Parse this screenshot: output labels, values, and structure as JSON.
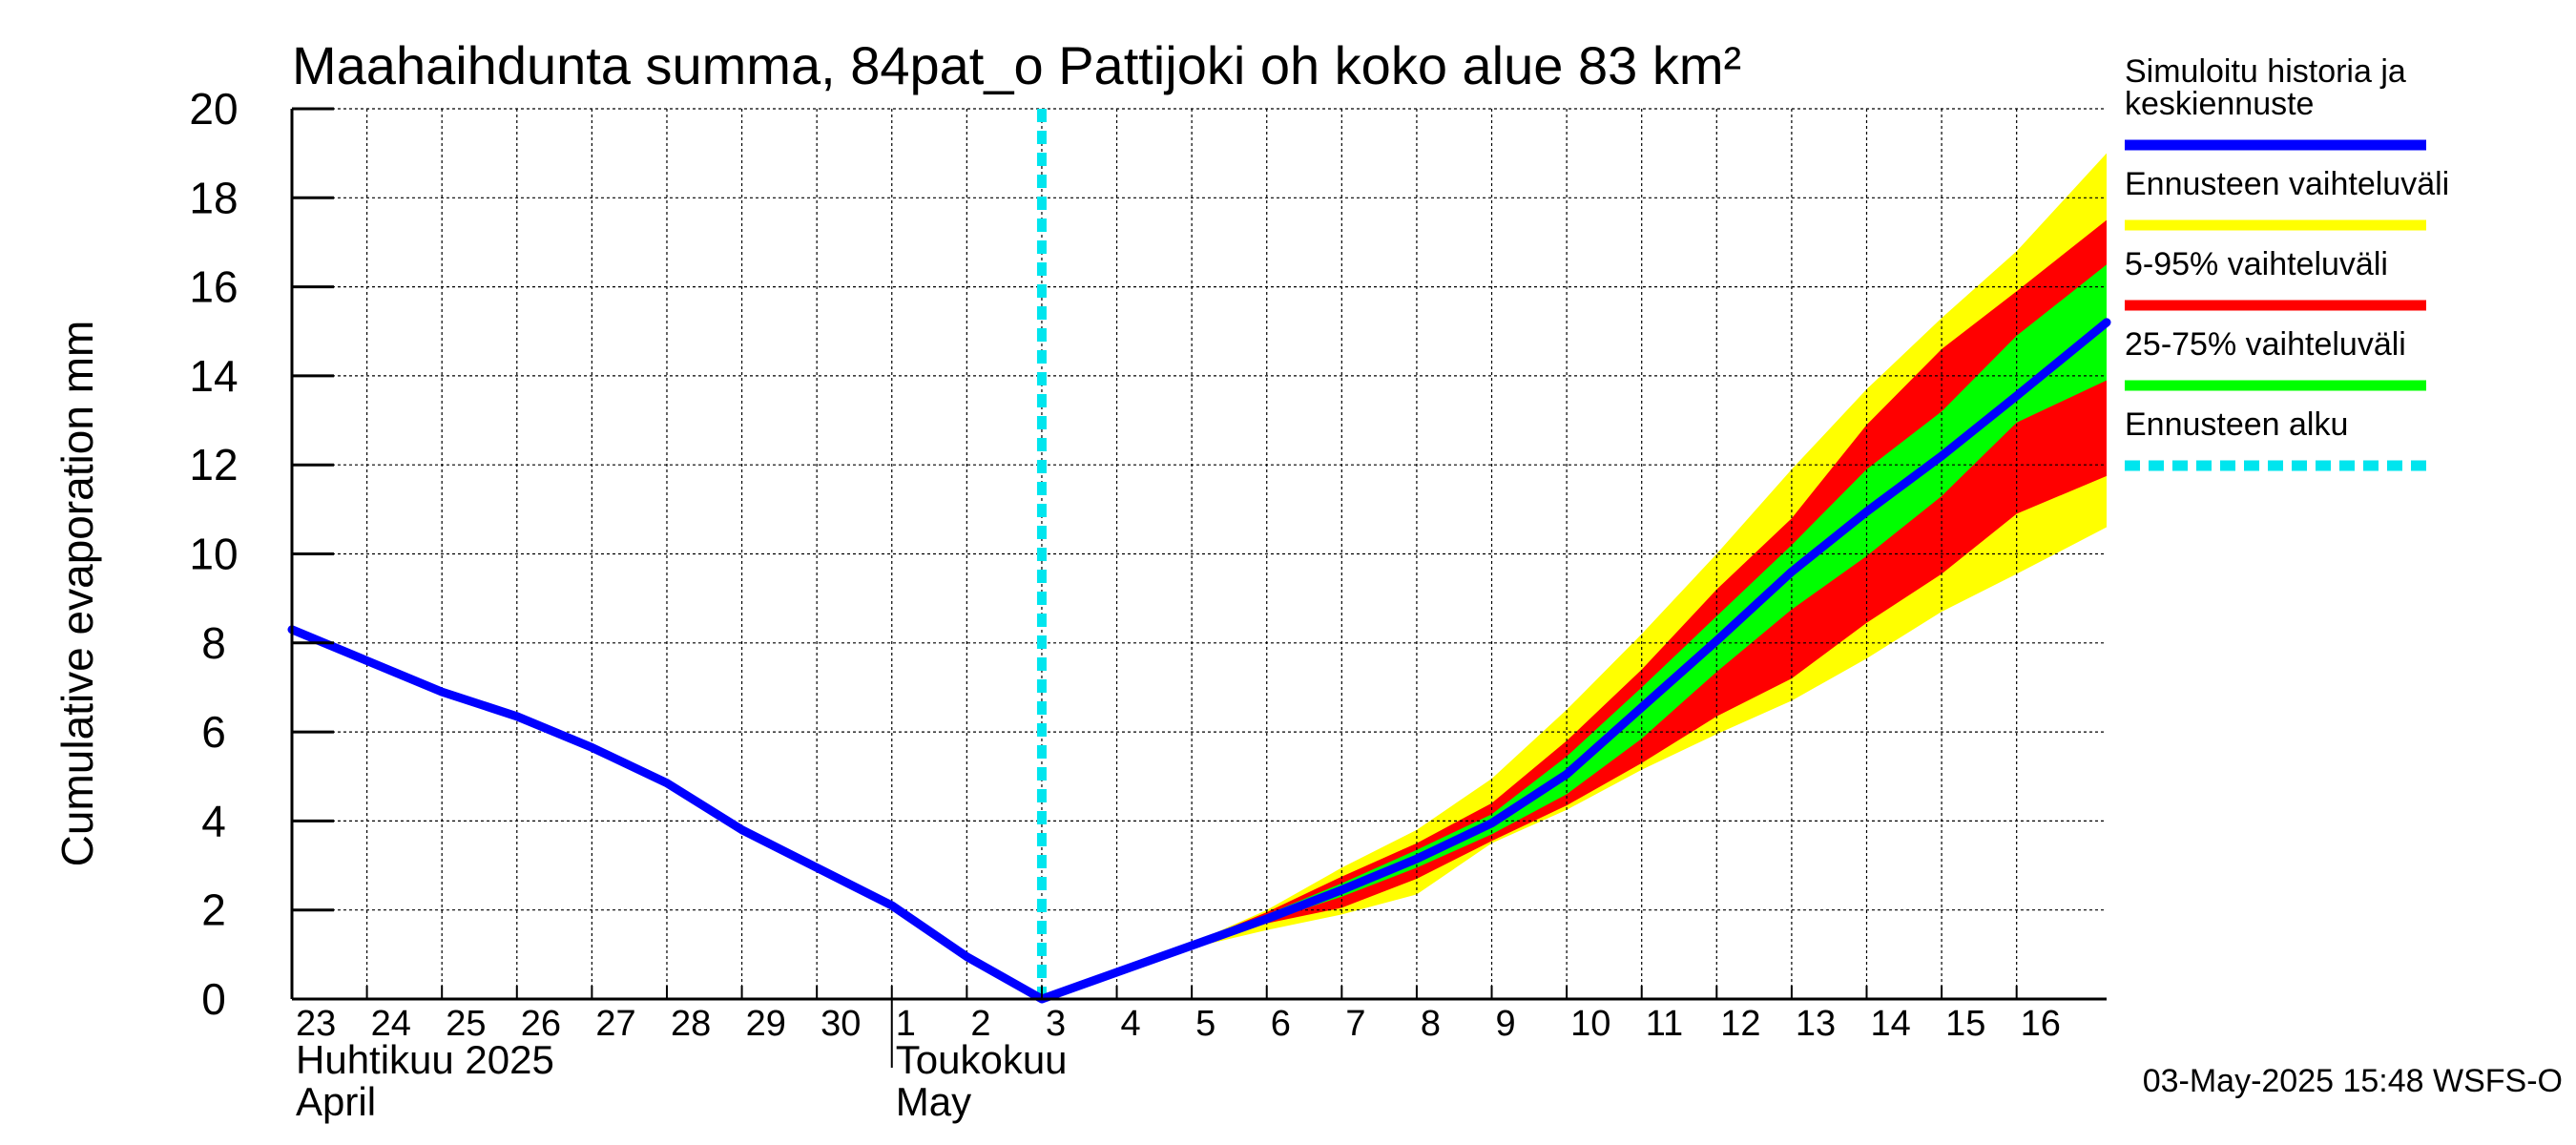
{
  "chart_data": {
    "type": "line",
    "title": "Maahaihdunta summa, 84pat_o Pattijoki oh koko alue 83 km²",
    "ylabel": "Cumulative evaporation   mm",
    "ylim": [
      0,
      20
    ],
    "yticks": [
      "0",
      "2",
      "4",
      "6",
      "8",
      "10",
      "12",
      "14",
      "16",
      "18",
      "20"
    ],
    "xlim": [
      0,
      24.2
    ],
    "x_tick_labels": [
      "23",
      "24",
      "25",
      "26",
      "27",
      "28",
      "29",
      "30",
      "1",
      "2",
      "3",
      "4",
      "5",
      "6",
      "7",
      "8",
      "9",
      "10",
      "11",
      "12",
      "13",
      "14",
      "15",
      "16"
    ],
    "month_labels": [
      {
        "fi": "Huhtikuu  2025",
        "en": "April",
        "start_index": 0
      },
      {
        "fi": "Toukokuu",
        "en": "May",
        "start_index": 8
      }
    ],
    "month_divider_index": 8,
    "grid": true,
    "forecast_start_x": 10.0,
    "series": [
      {
        "name": "Simuloitu historia ja keskiennuste",
        "color": "#0000ff",
        "x": [
          0,
          1,
          2,
          3,
          4,
          5,
          6,
          7,
          8,
          9,
          10,
          11,
          12,
          13,
          14,
          15,
          16,
          17,
          18,
          19,
          20,
          21,
          22,
          23,
          24.2
        ],
        "y": [
          8.3,
          7.6,
          6.9,
          6.35,
          5.65,
          4.85,
          3.8,
          2.95,
          2.1,
          0.95,
          0.0,
          0.6,
          1.2,
          1.8,
          2.45,
          3.15,
          3.95,
          5.05,
          6.55,
          8.05,
          9.6,
          10.95,
          12.2,
          13.55,
          15.2
        ]
      }
    ],
    "bands": [
      {
        "name": "Ennusteen vaihteluväli",
        "color": "#ffff00",
        "x": [
          12,
          13,
          14,
          15,
          16,
          17,
          18,
          19,
          20,
          21,
          22,
          23,
          24.2
        ],
        "upper": [
          1.25,
          2.0,
          2.95,
          3.8,
          4.95,
          6.5,
          8.2,
          10.0,
          11.9,
          13.7,
          15.3,
          16.8,
          19.0
        ],
        "lower": [
          1.15,
          1.55,
          1.9,
          2.35,
          3.5,
          4.25,
          5.15,
          5.95,
          6.7,
          7.65,
          8.7,
          9.55,
          10.6
        ]
      },
      {
        "name": "5-95% vaihteluväli",
        "color": "#ff0000",
        "x": [
          12,
          13,
          14,
          15,
          16,
          17,
          18,
          19,
          20,
          21,
          22,
          23,
          24.2
        ],
        "upper": [
          1.25,
          1.95,
          2.75,
          3.5,
          4.4,
          5.8,
          7.4,
          9.2,
          10.8,
          12.9,
          14.6,
          15.9,
          17.5
        ],
        "lower": [
          1.15,
          1.7,
          2.05,
          2.7,
          3.55,
          4.35,
          5.3,
          6.35,
          7.2,
          8.45,
          9.55,
          10.9,
          11.75
        ]
      },
      {
        "name": "25-75% vaihteluväli",
        "color": "#00ff00",
        "x": [
          12,
          13,
          14,
          15,
          16,
          17,
          18,
          19,
          20,
          21,
          22,
          23,
          24.2
        ],
        "upper": [
          1.25,
          1.9,
          2.6,
          3.35,
          4.15,
          5.45,
          7.0,
          8.6,
          10.2,
          11.9,
          13.2,
          14.9,
          16.5
        ],
        "lower": [
          1.2,
          1.75,
          2.3,
          2.95,
          3.7,
          4.6,
          5.85,
          7.35,
          8.75,
          9.95,
          11.3,
          12.95,
          13.9
        ]
      }
    ],
    "legend": {
      "placement": "right",
      "entries": [
        {
          "label": [
            "Simuloitu historia ja",
            "keskiennuste"
          ],
          "color": "#0000ff",
          "style": "solid"
        },
        {
          "label": [
            "Ennusteen vaihteluväli"
          ],
          "color": "#ffff00",
          "style": "solid"
        },
        {
          "label": [
            "5-95% vaihteluväli"
          ],
          "color": "#ff0000",
          "style": "solid"
        },
        {
          "label": [
            "25-75% vaihteluväli"
          ],
          "color": "#00ff00",
          "style": "solid"
        },
        {
          "label": [
            "Ennusteen alku"
          ],
          "color": "#00e5ee",
          "style": "dashed"
        }
      ]
    },
    "timestamp": "03-May-2025 15:48 WSFS-O"
  }
}
